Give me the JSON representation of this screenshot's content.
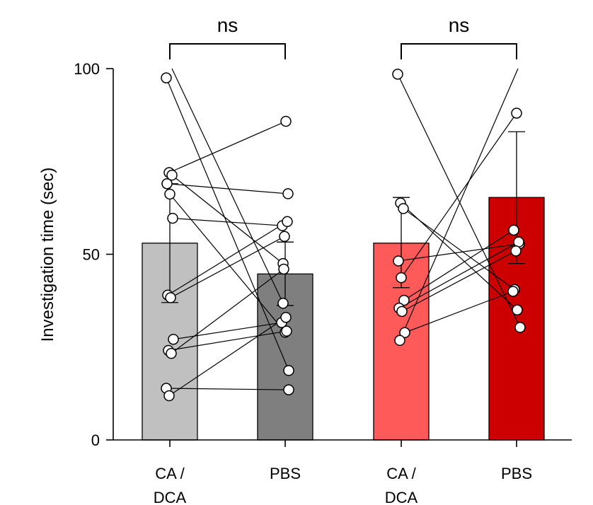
{
  "chart_data": {
    "type": "bar",
    "ylabel": "Investigation time (sec)",
    "xlabel": "",
    "ylim": [
      0,
      100
    ],
    "yticks": [
      0,
      50,
      100
    ],
    "categories": [
      {
        "id": "g1-cadca",
        "line1": "CA /",
        "line2": "DCA",
        "color": "#c0c0c0"
      },
      {
        "id": "g1-pbs",
        "line1": "PBS",
        "line2": "",
        "color": "#7f7f7f"
      },
      {
        "id": "g2-cadca",
        "line1": "CA /",
        "line2": "DCA",
        "color": "#ff5a5a"
      },
      {
        "id": "g2-pbs",
        "line1": "PBS",
        "line2": "",
        "color": "#cc0000"
      }
    ],
    "means": [
      53,
      44.7,
      53,
      65.3
    ],
    "error_upper": [
      69,
      53.3,
      65.3,
      83
    ],
    "error_lower": [
      37,
      36.2,
      41,
      47.5
    ],
    "pairs_group1": [
      {
        "a": 97.5,
        "b": 18.7
      },
      {
        "a": 72,
        "b": 85.8
      },
      {
        "a": 71.3,
        "b": 47.5
      },
      {
        "a": 69,
        "b": 66.3
      },
      {
        "a": 66.2,
        "b": 29
      },
      {
        "a": 59.7,
        "b": 57.7
      },
      {
        "a": 39,
        "b": 58.8
      },
      {
        "a": 38.3,
        "b": 54.8
      },
      {
        "a": 27.1,
        "b": 31.6
      },
      {
        "a": 24.1,
        "b": 29.3
      },
      {
        "a": 23.3,
        "b": 46
      },
      {
        "a": 13.9,
        "b": 13.5
      },
      {
        "a": 11.9,
        "b": 33
      },
      {
        "a": 100,
        "b": 36.8
      }
    ],
    "pairs_group2": [
      {
        "a": 98.5,
        "b": 30.3
      },
      {
        "a": 63.8,
        "b": 35
      },
      {
        "a": 62.3,
        "b": 40.5
      },
      {
        "a": 48.2,
        "b": 52.8
      },
      {
        "a": 43.7,
        "b": 88
      },
      {
        "a": 37.6,
        "b": 56.5
      },
      {
        "a": 35.5,
        "b": 53.3
      },
      {
        "a": 34.6,
        "b": 50.9
      },
      {
        "a": 28.9,
        "b": 40
      },
      {
        "a": 26.8,
        "b": 100
      }
    ],
    "significance": [
      {
        "from": 0,
        "to": 1,
        "label": "ns"
      },
      {
        "from": 2,
        "to": 3,
        "label": "ns"
      }
    ]
  }
}
